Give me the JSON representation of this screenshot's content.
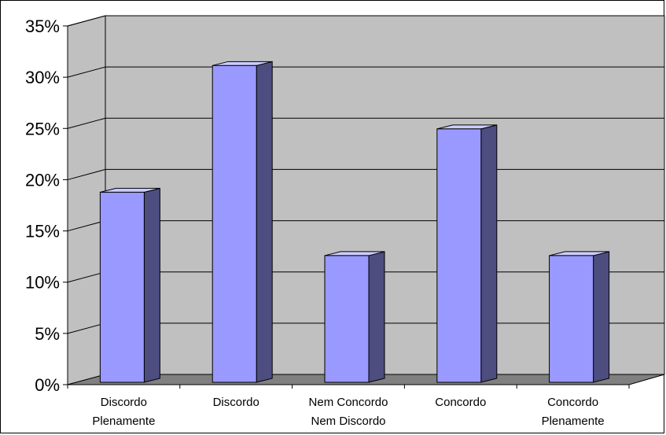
{
  "chart_data": {
    "type": "bar",
    "title": "",
    "xlabel": "",
    "ylabel": "",
    "categories": [
      [
        "Discordo",
        "Plenamente"
      ],
      [
        "Discordo"
      ],
      [
        "Nem Concordo",
        "Nem Discordo"
      ],
      [
        "Concordo"
      ],
      [
        "Concordo",
        "Plenamente"
      ]
    ],
    "values": [
      18.75,
      31.25,
      12.5,
      25.0,
      12.5
    ],
    "ylim": [
      0,
      35
    ],
    "yticks": [
      0,
      5,
      10,
      15,
      20,
      25,
      30,
      35
    ],
    "ytick_labels": [
      "0%",
      "5%",
      "10%",
      "15%",
      "20%",
      "25%",
      "30%",
      "35%"
    ],
    "grid": true,
    "three_d": true,
    "colors": {
      "bar_front": "#9999ff",
      "bar_side": "#4d4d80",
      "bar_top": "#ccccff",
      "plot_wall": "#c0c0c0",
      "plot_floor": "#808080",
      "grid": "#000000",
      "border": "#000000"
    }
  }
}
